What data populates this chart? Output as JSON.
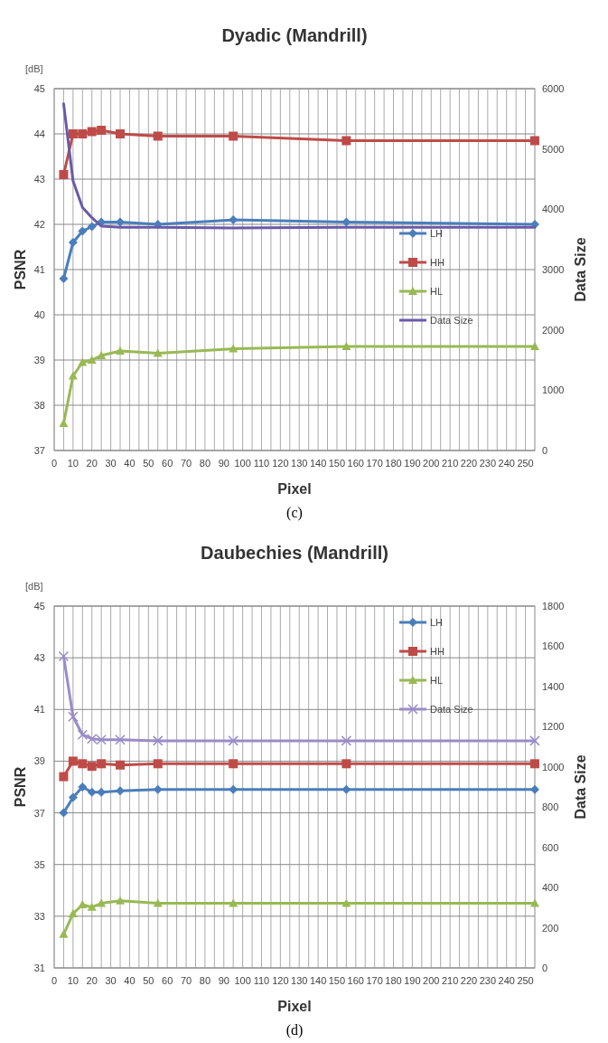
{
  "chart_data": [
    {
      "type": "line",
      "title": "Dyadic (Mandrill)",
      "xlabel": "Pixel",
      "ylabel": "PSNR",
      "y2label": "Data Size",
      "annotations": [
        "[dB]",
        "(c)"
      ],
      "x": [
        5,
        10,
        15,
        20,
        25,
        35,
        55,
        95,
        155,
        255
      ],
      "xlim": [
        0,
        255
      ],
      "xticks": [
        0,
        {
          "value": 5,
          "label": null
        },
        10,
        {
          "value": 15,
          "label": null
        },
        20,
        {
          "value": 25,
          "label": null
        },
        30,
        {
          "value": 35,
          "label": null
        },
        40,
        {
          "value": 45,
          "label": null
        },
        50,
        {
          "value": 55,
          "label": null
        },
        60,
        {
          "value": 65,
          "label": null
        },
        70,
        {
          "value": 75,
          "label": null
        },
        80,
        {
          "value": 85,
          "label": null
        },
        90,
        {
          "value": 95,
          "label": null
        },
        100,
        {
          "value": 105,
          "label": null
        },
        110,
        {
          "value": 115,
          "label": null
        },
        120,
        {
          "value": 125,
          "label": null
        },
        130,
        {
          "value": 135,
          "label": null
        },
        140,
        {
          "value": 145,
          "label": null
        },
        150,
        {
          "value": 155,
          "label": null
        },
        160,
        {
          "value": 165,
          "label": null
        },
        170,
        {
          "value": 175,
          "label": null
        },
        180,
        {
          "value": 185,
          "label": null
        },
        190,
        {
          "value": 195,
          "label": null
        },
        200,
        {
          "value": 205,
          "label": null
        },
        210,
        {
          "value": 215,
          "label": null
        },
        220,
        {
          "value": 225,
          "label": null
        },
        230,
        {
          "value": 235,
          "label": null
        },
        240,
        {
          "value": 245,
          "label": null
        },
        250
      ],
      "ylim": [
        37,
        45
      ],
      "yticks": [
        37,
        38,
        39,
        40,
        41,
        42,
        43,
        44,
        45
      ],
      "y2lim": [
        0,
        6000
      ],
      "y2ticks": [
        0,
        1000,
        2000,
        3000,
        4000,
        5000,
        6000
      ],
      "grid": true,
      "legend": "right",
      "series": [
        {
          "name": "LH",
          "color": "#4a7ebb",
          "marker": "diamond",
          "values": [
            40.8,
            41.6,
            41.85,
            41.95,
            42.05,
            42.05,
            42.0,
            42.1,
            42.05,
            42.0
          ]
        },
        {
          "name": "HH",
          "color": "#be4b48",
          "marker": "square",
          "values": [
            43.1,
            44.0,
            44.0,
            44.05,
            44.08,
            44.0,
            43.95,
            43.95,
            43.85,
            43.85
          ]
        },
        {
          "name": "HL",
          "color": "#98b954",
          "marker": "triangle",
          "values": [
            37.6,
            38.65,
            38.95,
            39.0,
            39.1,
            39.2,
            39.15,
            39.25,
            39.3,
            39.3
          ]
        },
        {
          "name": "Data Size",
          "color": "#6a5aa8",
          "marker": "none",
          "axis": "y2",
          "values": [
            5750,
            4470,
            4030,
            3860,
            3720,
            3700,
            3700,
            3690,
            3700,
            3700
          ]
        }
      ]
    },
    {
      "type": "line",
      "title": "Daubechies (Mandrill)",
      "xlabel": "Pixel",
      "ylabel": "PSNR",
      "y2label": "Data Size",
      "annotations": [
        "[dB]",
        "(d)"
      ],
      "x": [
        5,
        10,
        15,
        20,
        25,
        35,
        55,
        95,
        155,
        255
      ],
      "xlim": [
        0,
        255
      ],
      "xticks": [
        0,
        {
          "value": 5,
          "label": null
        },
        10,
        {
          "value": 15,
          "label": null
        },
        20,
        {
          "value": 25,
          "label": null
        },
        30,
        {
          "value": 35,
          "label": null
        },
        40,
        {
          "value": 45,
          "label": null
        },
        50,
        {
          "value": 55,
          "label": null
        },
        60,
        {
          "value": 65,
          "label": null
        },
        70,
        {
          "value": 75,
          "label": null
        },
        80,
        {
          "value": 85,
          "label": null
        },
        90,
        {
          "value": 95,
          "label": null
        },
        100,
        {
          "value": 105,
          "label": null
        },
        110,
        {
          "value": 115,
          "label": null
        },
        120,
        {
          "value": 125,
          "label": null
        },
        130,
        {
          "value": 135,
          "label": null
        },
        140,
        {
          "value": 145,
          "label": null
        },
        150,
        {
          "value": 155,
          "label": null
        },
        160,
        {
          "value": 165,
          "label": null
        },
        170,
        {
          "value": 175,
          "label": null
        },
        180,
        {
          "value": 185,
          "label": null
        },
        190,
        {
          "value": 195,
          "label": null
        },
        200,
        {
          "value": 205,
          "label": null
        },
        210,
        {
          "value": 215,
          "label": null
        },
        220,
        {
          "value": 225,
          "label": null
        },
        230,
        {
          "value": 235,
          "label": null
        },
        240,
        {
          "value": 245,
          "label": null
        },
        250
      ],
      "ylim": [
        31,
        45
      ],
      "yticks": [
        31,
        33,
        35,
        37,
        39,
        41,
        43,
        45
      ],
      "y2lim": [
        0,
        1800
      ],
      "y2ticks": [
        0,
        200,
        400,
        600,
        800,
        1000,
        1200,
        1400,
        1600,
        1800
      ],
      "grid": true,
      "legend": "top right",
      "series": [
        {
          "name": "LH",
          "color": "#4a7ebb",
          "marker": "diamond",
          "values": [
            37.0,
            37.6,
            38.0,
            37.8,
            37.8,
            37.85,
            37.9,
            37.9,
            37.9,
            37.9
          ]
        },
        {
          "name": "HH",
          "color": "#be4b48",
          "marker": "square",
          "values": [
            38.4,
            39.0,
            38.9,
            38.8,
            38.9,
            38.85,
            38.9,
            38.9,
            38.9,
            38.9
          ]
        },
        {
          "name": "HL",
          "color": "#98b954",
          "marker": "triangle",
          "values": [
            32.3,
            33.1,
            33.45,
            33.35,
            33.5,
            33.6,
            33.5,
            33.5,
            33.5,
            33.5
          ]
        },
        {
          "name": "Data Size",
          "color": "#9a8cc8",
          "marker": "cross",
          "axis": "y2",
          "values": [
            1550,
            1250,
            1160,
            1140,
            1135,
            1135,
            1130,
            1130,
            1130,
            1130
          ]
        }
      ]
    }
  ]
}
